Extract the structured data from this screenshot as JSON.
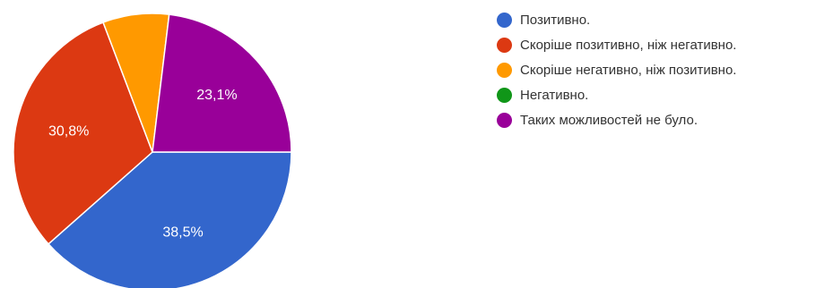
{
  "chart_data": {
    "type": "pie",
    "categories": [
      "Позитивно.",
      "Скоріше позитивно, ніж негативно.",
      "Скоріше негативно, ніж позитивно.",
      "Негативно.",
      "Таких можливостей не було."
    ],
    "values": [
      38.5,
      30.8,
      7.7,
      0,
      23.1
    ],
    "data_labels": [
      "38,5%",
      "30,8%",
      "",
      "",
      "23,1%"
    ],
    "colors": [
      "#3366cc",
      "#dc3912",
      "#ff9900",
      "#109618",
      "#990099"
    ],
    "legend_position": "right",
    "start": "right, clockwise"
  }
}
